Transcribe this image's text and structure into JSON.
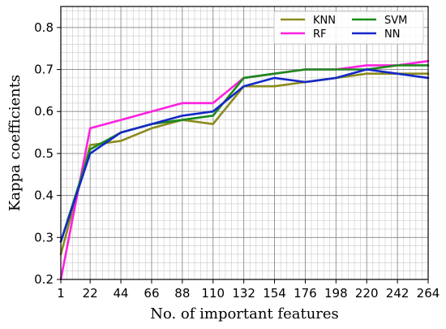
{
  "chart_data": {
    "type": "line",
    "title": "",
    "xlabel": "No. of important features",
    "ylabel": "Kappa coefficients",
    "xlim": [
      1,
      264
    ],
    "ylim": [
      0.2,
      0.85
    ],
    "x_ticks": [
      1,
      22,
      44,
      66,
      88,
      110,
      132,
      154,
      176,
      198,
      220,
      242,
      264
    ],
    "y_ticks": [
      0.2,
      0.3,
      0.4,
      0.5,
      0.6,
      0.7,
      0.8
    ],
    "grid": true,
    "legend": "top-right",
    "series": [
      {
        "name": "KNN",
        "color": "#8B8B1E",
        "x": [
          1,
          22,
          44,
          66,
          88,
          110,
          132,
          154,
          176,
          198,
          220,
          242,
          264
        ],
        "y": [
          0.26,
          0.52,
          0.53,
          0.56,
          0.58,
          0.57,
          0.66,
          0.66,
          0.67,
          0.68,
          0.69,
          0.69,
          0.69
        ]
      },
      {
        "name": "RF",
        "color": "#FF20E0",
        "x": [
          1,
          22,
          44,
          66,
          88,
          110,
          132,
          154,
          176,
          198,
          220,
          242,
          264
        ],
        "y": [
          0.2,
          0.56,
          0.58,
          0.6,
          0.62,
          0.62,
          0.68,
          0.69,
          0.7,
          0.7,
          0.71,
          0.71,
          0.72
        ]
      },
      {
        "name": "SVM",
        "color": "#1A8A1A",
        "x": [
          1,
          22,
          44,
          66,
          88,
          110,
          132,
          154,
          176,
          198,
          220,
          242,
          264
        ],
        "y": [
          0.29,
          0.51,
          0.55,
          0.57,
          0.58,
          0.59,
          0.68,
          0.69,
          0.7,
          0.7,
          0.7,
          0.71,
          0.71
        ]
      },
      {
        "name": "NN",
        "color": "#1428C8",
        "x": [
          1,
          22,
          44,
          66,
          88,
          110,
          132,
          154,
          176,
          198,
          220,
          242,
          264
        ],
        "y": [
          0.29,
          0.5,
          0.55,
          0.57,
          0.59,
          0.6,
          0.66,
          0.68,
          0.67,
          0.68,
          0.7,
          0.69,
          0.68
        ]
      }
    ]
  }
}
